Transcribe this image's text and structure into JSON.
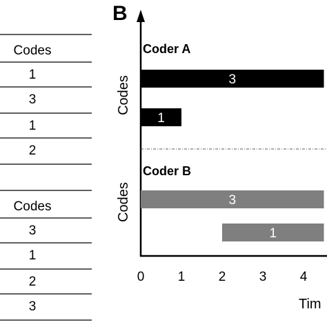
{
  "table_a": {
    "header": "Codes",
    "rows": [
      "1",
      "3",
      "1",
      "2"
    ]
  },
  "table_b": {
    "header": "Codes",
    "rows": [
      "3",
      "1",
      "2",
      "3"
    ]
  },
  "panel": {
    "letter": "B",
    "coder_a_label": "Coder A",
    "coder_b_label": "Coder B",
    "y_label_a": "Codes",
    "y_label_b": "Codes",
    "x_label": "Tim"
  },
  "chart_data": {
    "type": "gantt",
    "x_ticks": [
      "0",
      "1",
      "2",
      "3",
      "4"
    ],
    "xlim": [
      0,
      4.5
    ],
    "groups": [
      {
        "name": "Coder A",
        "color": "#000000",
        "bars": [
          {
            "code": "3",
            "start": 0,
            "end": 4.5
          },
          {
            "code": "1",
            "start": 0,
            "end": 1
          }
        ]
      },
      {
        "name": "Coder B",
        "color": "#7f7f7f",
        "bars": [
          {
            "code": "3",
            "start": 0,
            "end": 4.5
          },
          {
            "code": "1",
            "start": 2,
            "end": 4.5
          }
        ]
      }
    ]
  }
}
